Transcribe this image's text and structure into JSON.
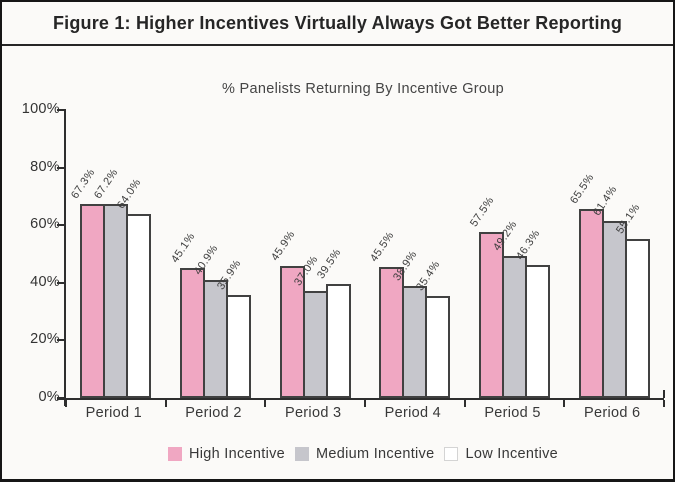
{
  "figure_title": "Figure 1: Higher Incentives Virtually Always Got Better Reporting",
  "chart_data": {
    "type": "bar",
    "title": "% Panelists Returning By Incentive Group",
    "categories": [
      "Period 1",
      "Period 2",
      "Period 3",
      "Period 4",
      "Period 5",
      "Period 6"
    ],
    "series": [
      {
        "name": "High Incentive",
        "color": "#f0a7c2",
        "values": [
          67.3,
          45.1,
          45.9,
          45.5,
          57.5,
          65.5
        ]
      },
      {
        "name": "Medium Incentive",
        "color": "#c6c6cc",
        "values": [
          67.2,
          40.9,
          37.0,
          38.9,
          49.2,
          61.4
        ]
      },
      {
        "name": "Low Incentive",
        "color": "#ffffff",
        "values": [
          64.0,
          35.9,
          39.5,
          35.4,
          46.3,
          55.1
        ]
      }
    ],
    "ylim": [
      0,
      100
    ],
    "ytick_labels": [
      "0%",
      "20%",
      "40%",
      "60%",
      "80%",
      "100%"
    ],
    "grid": false,
    "legend_position": "bottom",
    "value_label_suffix": "%"
  },
  "colors": {
    "high_incentive": "#f0a7c2",
    "medium_incentive": "#c6c6cc",
    "low_incentive": "#ffffff",
    "bar_border": "#414141",
    "axis": "#2e2e2e",
    "background": "#fbfaf8",
    "text": "#383838"
  }
}
